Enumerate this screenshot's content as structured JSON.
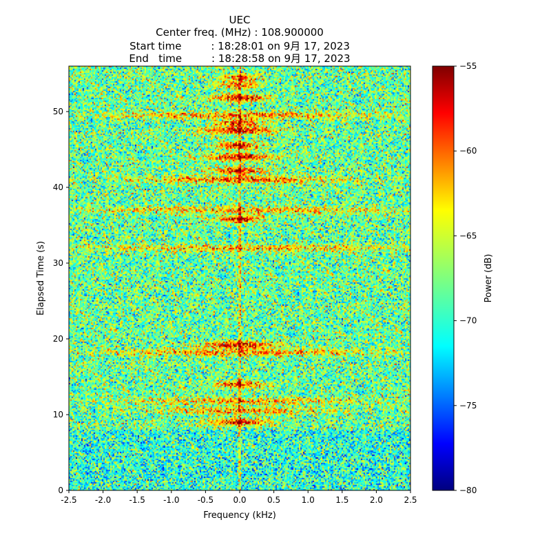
{
  "chart_data": {
    "type": "heatmap",
    "title_lines": [
      "UEC",
      "Center freq. (MHz) : 108.900000",
      "Start time         : 18:28:01 on 9月 17, 2023",
      "End   time         : 18:28:58 on 9月 17, 2023"
    ],
    "xlabel": "Frequency (kHz)",
    "ylabel": "Elapsed Time (s)",
    "xlim": [
      -2.5,
      2.5
    ],
    "ylim": [
      0,
      56
    ],
    "x_ticks": [
      "-2.5",
      "-2.0",
      "-1.5",
      "-1.0",
      "-0.5",
      "0.0",
      "0.5",
      "1.0",
      "1.5",
      "2.0",
      "2.5"
    ],
    "y_ticks": [
      "0",
      "10",
      "20",
      "30",
      "40",
      "50"
    ],
    "colorbar": {
      "label": "Power (dB)",
      "range": [
        -80,
        -55
      ],
      "ticks": [
        "−55",
        "−60",
        "−65",
        "−70",
        "−75",
        "−80"
      ],
      "colormap": "jet"
    },
    "background_level_db": -68,
    "center_line_freq_khz": 0.0,
    "bursts": [
      {
        "time_s": 9.0,
        "width_khz": 0.4,
        "peak_db": -56
      },
      {
        "time_s": 10.5,
        "width_khz": 1.2,
        "peak_db": -60
      },
      {
        "time_s": 11.8,
        "width_khz": 1.6,
        "peak_db": -61
      },
      {
        "time_s": 14.0,
        "width_khz": 0.4,
        "peak_db": -58
      },
      {
        "time_s": 18.2,
        "width_khz": 2.0,
        "peak_db": -60
      },
      {
        "time_s": 19.2,
        "width_khz": 0.5,
        "peak_db": -55
      },
      {
        "time_s": 32.0,
        "width_khz": 2.4,
        "peak_db": -62
      },
      {
        "time_s": 35.8,
        "width_khz": 0.3,
        "peak_db": -55
      },
      {
        "time_s": 37.0,
        "width_khz": 2.2,
        "peak_db": -61
      },
      {
        "time_s": 41.0,
        "width_khz": 1.4,
        "peak_db": -58
      },
      {
        "time_s": 42.2,
        "width_khz": 0.4,
        "peak_db": -56
      },
      {
        "time_s": 44.0,
        "width_khz": 0.5,
        "peak_db": -56
      },
      {
        "time_s": 45.5,
        "width_khz": 0.3,
        "peak_db": -55
      },
      {
        "time_s": 47.5,
        "width_khz": 0.5,
        "peak_db": -55
      },
      {
        "time_s": 48.5,
        "width_khz": 0.3,
        "peak_db": -56
      },
      {
        "time_s": 49.5,
        "width_khz": 1.8,
        "peak_db": -60
      },
      {
        "time_s": 51.8,
        "width_khz": 0.4,
        "peak_db": -56
      },
      {
        "time_s": 53.5,
        "width_khz": 0.3,
        "peak_db": -58
      },
      {
        "time_s": 54.5,
        "width_khz": 0.25,
        "peak_db": -58
      }
    ]
  }
}
